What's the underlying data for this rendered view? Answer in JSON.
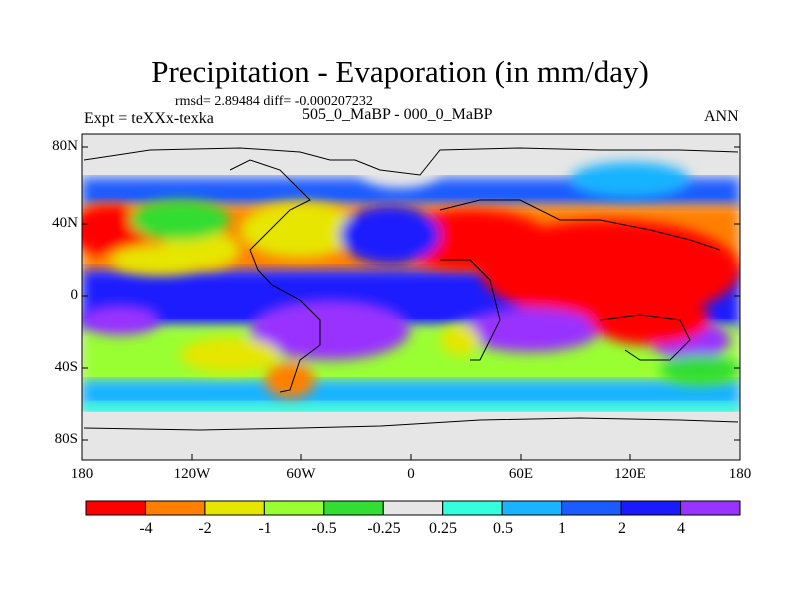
{
  "title": "Precipitation - Evaporation (in mm/day)",
  "stats": "rmsd= 2.89484 diff= -0.000207232",
  "experiment": "Expt = teXXx-texka",
  "period": "505_0_MaBP - 000_0_MaBP",
  "season": "ANN",
  "lat_labels": [
    "80N",
    "40N",
    "0",
    "40S",
    "80S"
  ],
  "lon_labels": [
    "180",
    "120W",
    "60W",
    "0",
    "60E",
    "120E",
    "180"
  ],
  "colorbar": {
    "labels": [
      "-4",
      "-2",
      "-1",
      "-0.5",
      "-0.25",
      "0.25",
      "0.5",
      "1",
      "2",
      "4"
    ],
    "colors": [
      "#ff0000",
      "#ff8000",
      "#e6e600",
      "#99ff33",
      "#33dd33",
      "#e6e6e6",
      "#33ffdd",
      "#19b3ff",
      "#1a5cff",
      "#1a1aff",
      "#9933ff"
    ]
  }
}
